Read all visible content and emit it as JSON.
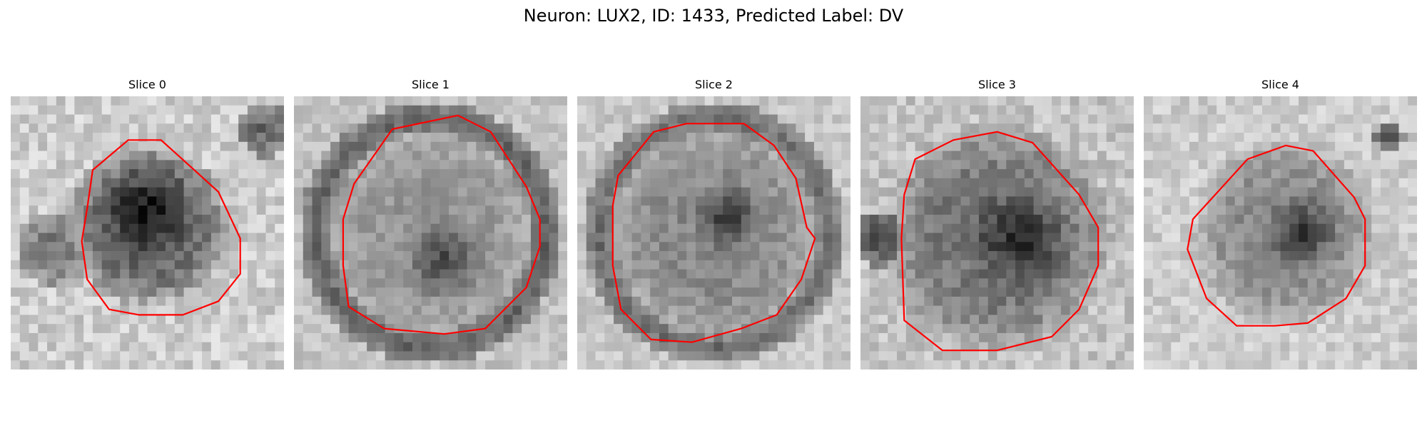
{
  "figure": {
    "title": "Neuron: LUX2, ID: 1433, Predicted Label: DV"
  },
  "colors": {
    "background": "#ffffff",
    "outline": "#ff0000"
  },
  "panels": [
    {
      "title": "Slice 0"
    },
    {
      "title": "Slice 1"
    },
    {
      "title": "Slice 2"
    },
    {
      "title": "Slice 3"
    },
    {
      "title": "Slice 4"
    }
  ]
}
